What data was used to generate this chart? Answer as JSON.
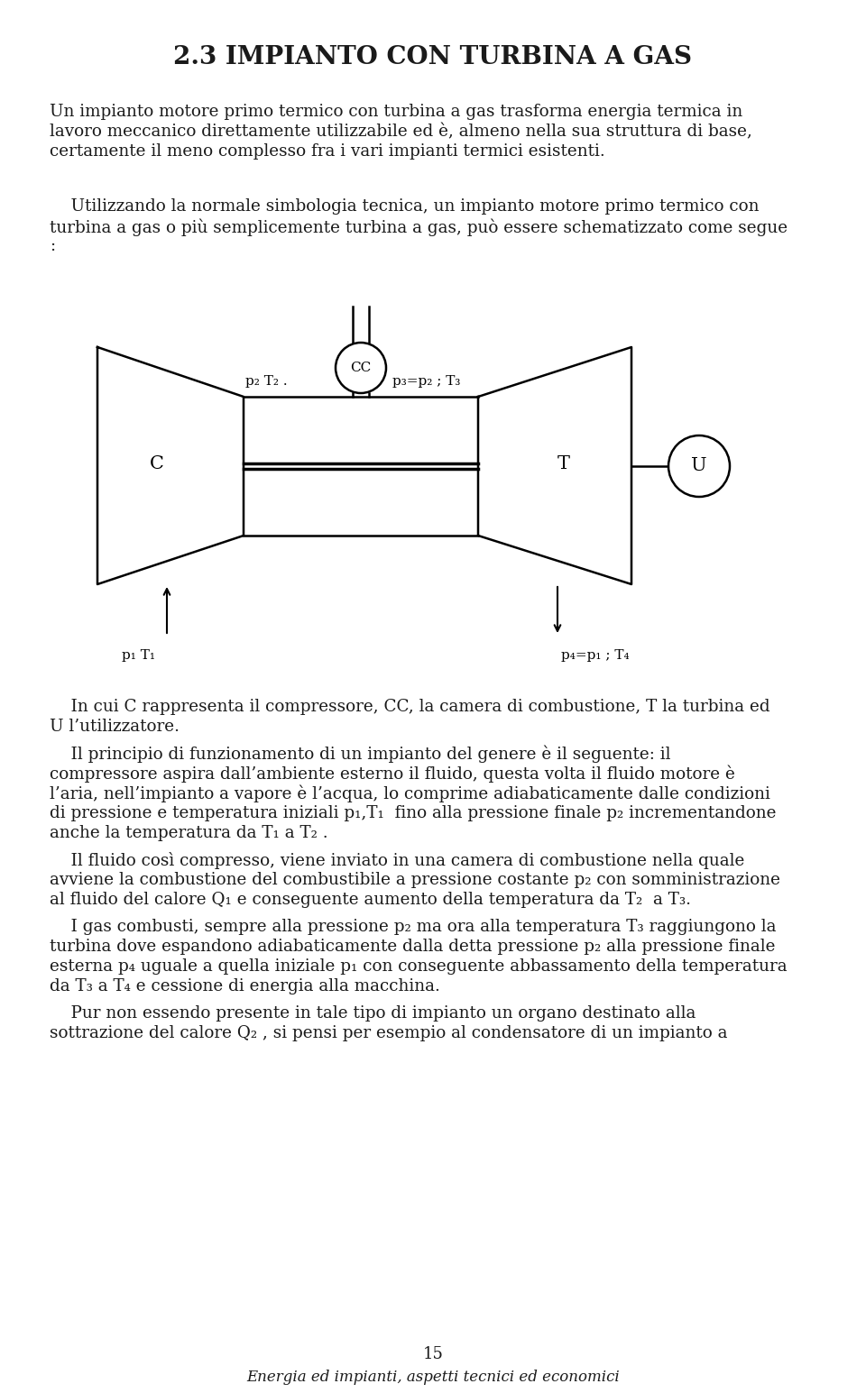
{
  "title": "2.3 IMPIANTO CON TURBINA A GAS",
  "bg_color": "#ffffff",
  "text_color": "#1a1a1a",
  "page_number": "15",
  "footer": "Energia ed impianti, aspetti tecnici ed economici",
  "para1_lines": [
    "Un impianto motore primo termico con turbina a gas trasforma energia termica in",
    "lavoro meccanico direttamente utilizzabile ed è, almeno nella sua struttura di base,",
    "certamente il meno complesso fra i vari impianti termici esistenti."
  ],
  "para2_lines": [
    "    Utilizzando la normale simbologia tecnica, un impianto motore primo termico con",
    "turbina a gas o più semplicemente turbina a gas, può essere schematizzato come segue",
    ":"
  ],
  "caption_lines": [
    "    In cui C rappresenta il compressore, CC, la camera di combustione, T la turbina ed",
    "U l’utilizzatore."
  ],
  "para3_lines": [
    "    Il principio di funzionamento di un impianto del genere è il seguente: il",
    "compressore aspira dall’ambiente esterno il fluido, questa volta il fluido motore è",
    "l’aria, nell’impianto a vapore è l’acqua, lo comprime adiabaticamente dalle condizioni",
    "di pressione e temperatura iniziali p₁,T₁  fino alla pressione finale p₂ incrementandone",
    "anche la temperatura da T₁ a T₂ ."
  ],
  "para4_lines": [
    "    Il fluido così compresso, viene inviato in una camera di combustione nella quale",
    "avviene la combustione del combustibile a pressione costante p₂ con somministrazione",
    "al fluido del calore Q₁ e conseguente aumento della temperatura da T₂  a T₃."
  ],
  "para5_lines": [
    "    I gas combusti, sempre alla pressione p₂ ma ora alla temperatura T₃ raggiungono la",
    "turbina dove espandono adiabaticamente dalla detta pressione p₂ alla pressione finale",
    "esterna p₄ uguale a quella iniziale p₁ con conseguente abbassamento della temperatura",
    "da T₃ a T₄ e cessione di energia alla macchina."
  ],
  "para6_lines": [
    "    Pur non essendo presente in tale tipo di impianto un organo destinato alla",
    "sottrazione del calore Q₂ , si pensi per esempio al condensatore di un impianto a"
  ]
}
